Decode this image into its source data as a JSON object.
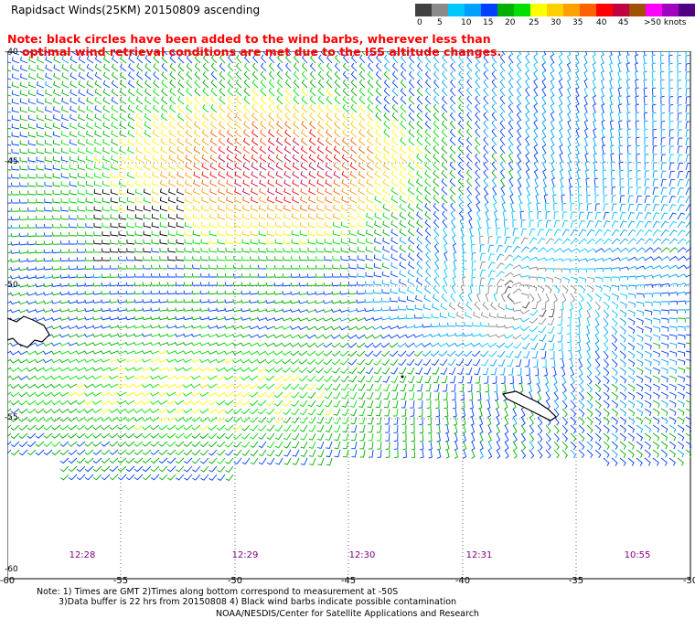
{
  "header": {
    "title": "Rapidsact Winds(25KM) 20150809 ascending",
    "note_line1": "Note: black circles have been added to the wind barbs, wherever less than",
    "note_line2": "optimal wind retrieval conditions are met due to the ISS altitude changes."
  },
  "color_scale": {
    "labels": [
      "0",
      "5",
      "10",
      "15",
      "20",
      "25",
      "30",
      "35",
      "40",
      "45",
      ">50 knots"
    ],
    "colors": [
      "#404040",
      "#8a8a8a",
      "#00c8ff",
      "#00a0ff",
      "#0040ff",
      "#00b000",
      "#00e000",
      "#ffff00",
      "#ffd000",
      "#ffa000",
      "#ff6000",
      "#ff0000",
      "#c00040",
      "#a05000",
      "#ff00ff",
      "#a000c0",
      "#500080"
    ]
  },
  "axes": {
    "x_labels": [
      "-60",
      "-55",
      "-50",
      "-45",
      "-40",
      "-35",
      "-30"
    ],
    "y_labels": [
      "-40",
      "-45",
      "-50",
      "-55",
      "-60"
    ]
  },
  "times": [
    "12:28",
    "12:29",
    "12:30",
    "12:31",
    "10:55"
  ],
  "footnotes": {
    "line1": "Note: 1) Times are GMT 2)Times along bottom correspond to measurement at -50S",
    "line2": "3)Data buffer is 22 hrs from 20150808 4) Black wind barbs indicate possible contamination",
    "credit": "NOAA/NESDIS/Center for Satellite Applications and Research"
  }
}
